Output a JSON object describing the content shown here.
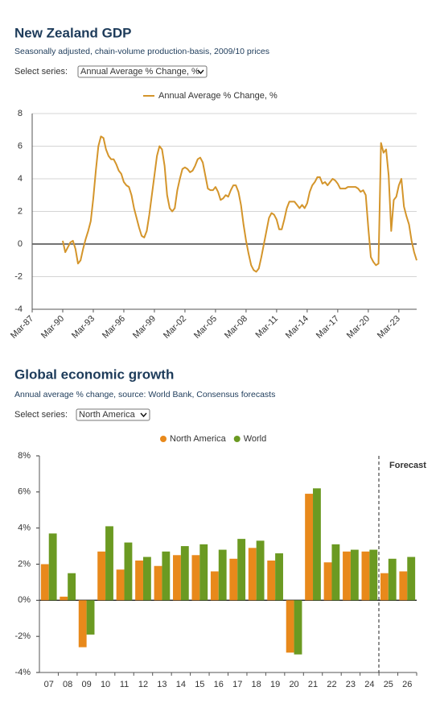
{
  "chart_data": [
    {
      "type": "line",
      "title": "New Zealand GDP",
      "subtitle": "Seasonally adjusted, chain-volume production-basis, 2009/10 prices",
      "control_label": "Select series:",
      "control_value": "Annual Average % Change, %",
      "categories": [
        "Mar-87",
        null,
        null,
        null,
        null,
        null,
        null,
        null,
        null,
        null,
        null,
        null,
        "Mar-90",
        null,
        null,
        null,
        null,
        null,
        null,
        null,
        null,
        null,
        null,
        null,
        "Mar-93",
        null,
        null,
        null,
        null,
        null,
        null,
        null,
        null,
        null,
        null,
        null,
        "Mar-96",
        null,
        null,
        null,
        null,
        null,
        null,
        null,
        null,
        null,
        null,
        null,
        "Mar-99",
        null,
        null,
        null,
        null,
        null,
        null,
        null,
        null,
        null,
        null,
        null,
        "Mar-02",
        null,
        null,
        null,
        null,
        null,
        null,
        null,
        null,
        null,
        null,
        null,
        "Mar-05",
        null,
        null,
        null,
        null,
        null,
        null,
        null,
        null,
        null,
        null,
        null,
        "Mar-08",
        null,
        null,
        null,
        null,
        null,
        null,
        null,
        null,
        null,
        null,
        null,
        "Mar-11",
        null,
        null,
        null,
        null,
        null,
        null,
        null,
        null,
        null,
        null,
        null,
        "Mar-14",
        null,
        null,
        null,
        null,
        null,
        null,
        null,
        null,
        null,
        null,
        null,
        "Mar-17",
        null,
        null,
        null,
        null,
        null,
        null,
        null,
        null,
        null,
        null,
        null,
        "Mar-20",
        null,
        null,
        null,
        null,
        null,
        null,
        null,
        null,
        null,
        null,
        null,
        "Mar-23",
        null,
        null,
        null,
        null,
        null,
        null,
        null
      ],
      "series": [
        {
          "name": "Annual Average % Change, %",
          "color": "#d4952b",
          "values": [
            null,
            null,
            null,
            null,
            null,
            null,
            null,
            null,
            null,
            null,
            null,
            null,
            0.2,
            -0.5,
            -0.2,
            0.1,
            0.2,
            -0.3,
            -1.2,
            -1.0,
            -0.3,
            0.3,
            0.8,
            1.4,
            2.8,
            4.5,
            6.0,
            6.6,
            6.5,
            5.8,
            5.4,
            5.2,
            5.2,
            4.9,
            4.5,
            4.3,
            3.8,
            3.6,
            3.5,
            3.0,
            2.2,
            1.6,
            1.0,
            0.5,
            0.4,
            0.8,
            1.8,
            3.0,
            4.2,
            5.4,
            6.0,
            5.8,
            4.8,
            3.0,
            2.2,
            2.0,
            2.2,
            3.3,
            4.0,
            4.6,
            4.7,
            4.6,
            4.4,
            4.5,
            4.8,
            5.2,
            5.3,
            5.0,
            4.2,
            3.4,
            3.3,
            3.3,
            3.5,
            3.2,
            2.7,
            2.8,
            3.0,
            2.9,
            3.3,
            3.6,
            3.6,
            3.2,
            2.4,
            1.2,
            0.2,
            -0.6,
            -1.3,
            -1.6,
            -1.7,
            -1.5,
            -0.8,
            0.0,
            0.8,
            1.6,
            1.9,
            1.8,
            1.5,
            0.9,
            0.9,
            1.5,
            2.2,
            2.6,
            2.6,
            2.6,
            2.4,
            2.2,
            2.4,
            2.2,
            2.5,
            3.2,
            3.6,
            3.8,
            4.1,
            4.1,
            3.7,
            3.8,
            3.6,
            3.8,
            4.0,
            3.9,
            3.7,
            3.4,
            3.4,
            3.4,
            3.5,
            3.5,
            3.5,
            3.5,
            3.4,
            3.2,
            3.3,
            3.0,
            1.0,
            -0.8,
            -1.1,
            -1.3,
            -1.2,
            6.2,
            5.6,
            5.8,
            4.2,
            0.8,
            2.7,
            2.9,
            3.6,
            4.0,
            2.3,
            1.7,
            1.2,
            0.2,
            -0.5,
            -1.0
          ]
        }
      ],
      "ylim": [
        -4,
        8
      ],
      "yticks": [
        -4,
        -2,
        0,
        2,
        4,
        6,
        8
      ],
      "grid": true
    },
    {
      "type": "bar",
      "title": "Global economic growth",
      "subtitle": "Annual average % change, source: World Bank, Consensus forecasts",
      "control_label": "Select series:",
      "control_value": "North America",
      "annotation": "Forecast",
      "categories": [
        "07",
        "08",
        "09",
        "10",
        "11",
        "12",
        "13",
        "14",
        "15",
        "16",
        "17",
        "18",
        "19",
        "20",
        "21",
        "22",
        "23",
        "24",
        "25",
        "26"
      ],
      "series": [
        {
          "name": "North America",
          "color": "#e8891b",
          "values": [
            2.0,
            0.2,
            -2.6,
            2.7,
            1.7,
            2.2,
            1.9,
            2.5,
            2.5,
            1.6,
            2.3,
            2.9,
            2.2,
            -2.9,
            5.9,
            2.1,
            2.7,
            2.7,
            1.5,
            1.6
          ]
        },
        {
          "name": "World",
          "color": "#6b9a22",
          "values": [
            3.7,
            1.5,
            -1.9,
            4.1,
            3.2,
            2.4,
            2.7,
            3.0,
            3.1,
            2.8,
            3.4,
            3.3,
            2.6,
            -3.0,
            6.2,
            3.1,
            2.8,
            2.8,
            2.3,
            2.4
          ]
        }
      ],
      "ylim": [
        -4,
        8
      ],
      "yticks": [
        {
          "value": -4,
          "label": "-4%"
        },
        {
          "value": -2,
          "label": "-2%"
        },
        {
          "value": 0,
          "label": "0%"
        },
        {
          "value": 2,
          "label": "2%"
        },
        {
          "value": 4,
          "label": "4%"
        },
        {
          "value": 6,
          "label": "6%"
        },
        {
          "value": 8,
          "label": "8%"
        }
      ],
      "grid": false
    }
  ]
}
